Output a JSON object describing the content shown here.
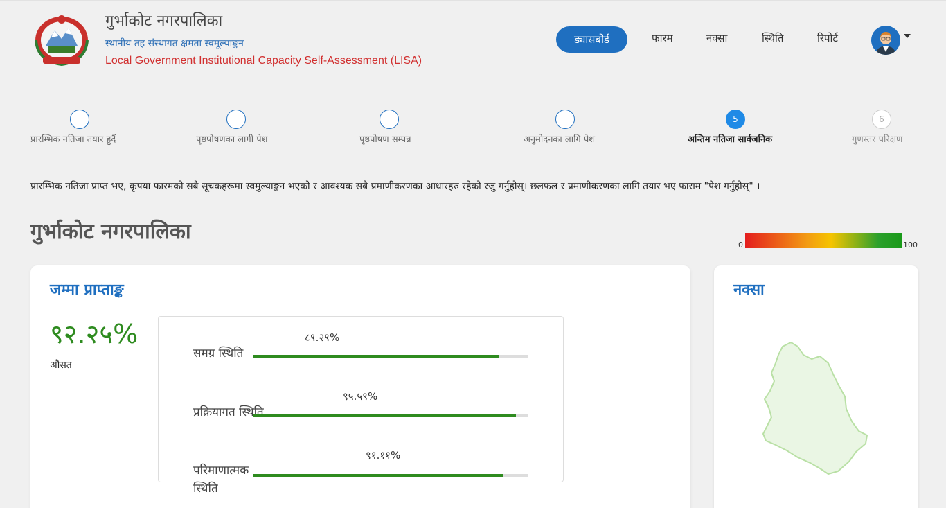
{
  "header": {
    "org_name": "गुर्भाकोट नगरपालिका",
    "subtitle": "स्थानीय तह संस्थागत क्षमता स्वमूल्याङ्कन",
    "english_title": "Local Government Institutional Capacity Self-Assessment (LISA)",
    "nav": {
      "dashboard": "ड्यासबोर्ड",
      "form": "फारम",
      "map": "नक्सा",
      "status": "स्थिति",
      "report": "रिपोर्ट"
    }
  },
  "stepper": {
    "steps": [
      {
        "label": "प्रारम्भिक नतिजा तयार हुदैं",
        "number": "",
        "state": "done"
      },
      {
        "label": "पृष्ठपोषणका लागी पेश",
        "number": "",
        "state": "done"
      },
      {
        "label": "पृष्ठपोषण सम्पन्न",
        "number": "",
        "state": "done"
      },
      {
        "label": "अनुमोदनका लागि पेश",
        "number": "",
        "state": "done"
      },
      {
        "label": "अन्तिम नतिजा सार्वजनिक",
        "number": "5",
        "state": "active"
      },
      {
        "label": "गुणस्तर परिक्षण",
        "number": "6",
        "state": "pending"
      }
    ]
  },
  "instructions": "प्रारम्भिक नतिजा प्राप्त भए, कृपया फारमको सबै सूचकहरूमा स्वमुल्याङ्कन भएको र आवश्यक सबै प्रमाणीकरणका आधारहरु रहेको रजु गर्नुहोस्। छलफल र प्रमाणीकरणका लागि तयार भए फाराम \"पेश गर्नुहोस्\" ।",
  "page_title": "गुर्भाकोट नगरपालिका",
  "scale": {
    "min": "0",
    "max": "100"
  },
  "score_card": {
    "title": "जम्मा प्राप्ताङ्क",
    "total": "९२.२५%",
    "caption": "औसत",
    "bars": [
      {
        "label": "समग्र स्थिति",
        "percent_text": "८९.२९%",
        "value": 89.29
      },
      {
        "label": "प्रक्रियागत स्थिति",
        "percent_text": "९५.५९%",
        "value": 95.59
      },
      {
        "label": "परिमाणात्मक स्थिति",
        "percent_text": "९१.११%",
        "value": 91.11
      }
    ]
  },
  "map_card": {
    "title": "नक्सा"
  },
  "colors": {
    "primary": "#1f6fc0",
    "success": "#2e8b1f",
    "english_title": "#d12f2f"
  }
}
